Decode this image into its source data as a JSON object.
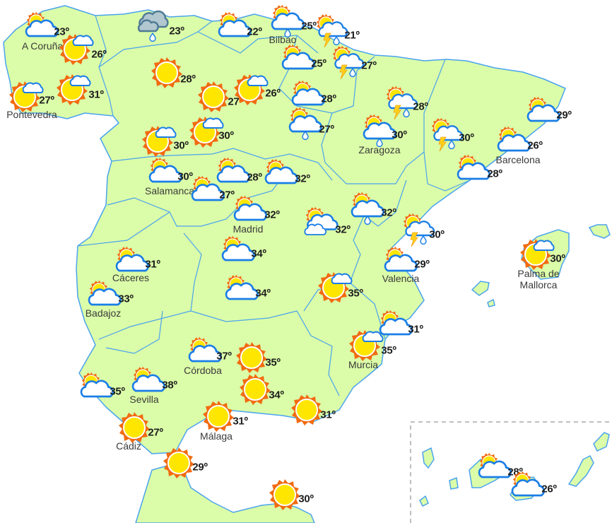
{
  "map": {
    "land_color": "#dbfca8",
    "border_color": "#4aa3ef",
    "cloud_stroke_color": "#1a7ee6",
    "sun_color": "#ffe600",
    "sun_ray_color": "#f26b10"
  },
  "forecasts": [
    {
      "city": "A Coruña",
      "temp": "23º",
      "icon": "cloud-sun"
    },
    {
      "city": "",
      "temp": "26º",
      "icon": "sun-small-cloud"
    },
    {
      "city": "Pontevedra",
      "temp": "27º",
      "icon": "sun-small-cloud"
    },
    {
      "city": "",
      "temp": "31º",
      "icon": "sun-small-cloud"
    },
    {
      "city": "",
      "temp": "23º",
      "icon": "gray-cloud-rain"
    },
    {
      "city": "",
      "temp": "22º",
      "icon": "cloud-sun"
    },
    {
      "city": "Bilbao",
      "temp": "25º",
      "icon": "cloud-sun-rain"
    },
    {
      "city": "",
      "temp": "21º",
      "icon": "cloud-sun-storm"
    },
    {
      "city": "",
      "temp": "25º",
      "icon": "cloud-sun"
    },
    {
      "city": "",
      "temp": "27º",
      "icon": "cloud-sun-storm"
    },
    {
      "city": "",
      "temp": "28º",
      "icon": "sun"
    },
    {
      "city": "",
      "temp": "27º",
      "icon": "sun"
    },
    {
      "city": "",
      "temp": "26º",
      "icon": "sun-small-cloud"
    },
    {
      "city": "",
      "temp": "28º",
      "icon": "cloud-sun"
    },
    {
      "city": "",
      "temp": "27º",
      "icon": "cloud-sun-rain"
    },
    {
      "city": "",
      "temp": "28º",
      "icon": "cloud-sun-storm"
    },
    {
      "city": "",
      "temp": "30º",
      "icon": "sun-small-cloud"
    },
    {
      "city": "",
      "temp": "30º",
      "icon": "sun-small-cloud"
    },
    {
      "city": "Zaragoza",
      "temp": "30º",
      "icon": "cloud-sun-rain"
    },
    {
      "city": "",
      "temp": "30º",
      "icon": "cloud-sun-storm"
    },
    {
      "city": "",
      "temp": "29º",
      "icon": "cloud-sun"
    },
    {
      "city": "Barcelona",
      "temp": "26º",
      "icon": "cloud-sun"
    },
    {
      "city": "",
      "temp": "28º",
      "icon": "cloud-sun"
    },
    {
      "city": "Salamanca",
      "temp": "30º",
      "icon": "cloud-sun"
    },
    {
      "city": "",
      "temp": "27º",
      "icon": "cloud-sun"
    },
    {
      "city": "",
      "temp": "28º",
      "icon": "cloud-sun"
    },
    {
      "city": "",
      "temp": "32º",
      "icon": "cloud-sun"
    },
    {
      "city": "Madrid",
      "temp": "32º",
      "icon": "cloud-sun"
    },
    {
      "city": "",
      "temp": "32º",
      "icon": "cloud-sun-rain"
    },
    {
      "city": "",
      "temp": "32º",
      "icon": "cloud-sun-double"
    },
    {
      "city": "",
      "temp": "30º",
      "icon": "cloud-sun-storm"
    },
    {
      "city": "Valencia",
      "temp": "29º",
      "icon": "cloud-sun"
    },
    {
      "city": "Palma de Mallorca",
      "city_lines": [
        "Palma de",
        "Mallorca"
      ],
      "temp": "30º",
      "icon": "sun-small-cloud"
    },
    {
      "city": "Cáceres",
      "temp": "31º",
      "icon": "cloud-sun"
    },
    {
      "city": "Badajoz",
      "temp": "33º",
      "icon": "cloud-sun"
    },
    {
      "city": "",
      "temp": "34º",
      "icon": "cloud-sun"
    },
    {
      "city": "",
      "temp": "34º",
      "icon": "cloud-sun"
    },
    {
      "city": "",
      "temp": "35º",
      "icon": "sun-small-cloud"
    },
    {
      "city": "",
      "temp": "31º",
      "icon": "cloud-sun"
    },
    {
      "city": "Murcia",
      "temp": "35º",
      "icon": "sun-small-cloud"
    },
    {
      "city": "Córdoba",
      "temp": "37º",
      "icon": "cloud-sun"
    },
    {
      "city": "",
      "temp": "35º",
      "icon": "sun"
    },
    {
      "city": "",
      "temp": "34º",
      "icon": "sun"
    },
    {
      "city": "",
      "temp": "35º",
      "icon": "cloud-sun"
    },
    {
      "city": "Sevilla",
      "temp": "38º",
      "icon": "cloud-sun"
    },
    {
      "city": "Málaga",
      "temp": "31º",
      "icon": "sun"
    },
    {
      "city": "",
      "temp": "31º",
      "icon": "sun"
    },
    {
      "city": "Cádiz",
      "temp": "27º",
      "icon": "sun"
    },
    {
      "city": "",
      "temp": "29º",
      "icon": "sun"
    },
    {
      "city": "",
      "temp": "30º",
      "icon": "sun"
    },
    {
      "city": "",
      "temp": "28º",
      "icon": "cloud-sun"
    },
    {
      "city": "",
      "temp": "26º",
      "icon": "cloud-sun"
    }
  ]
}
